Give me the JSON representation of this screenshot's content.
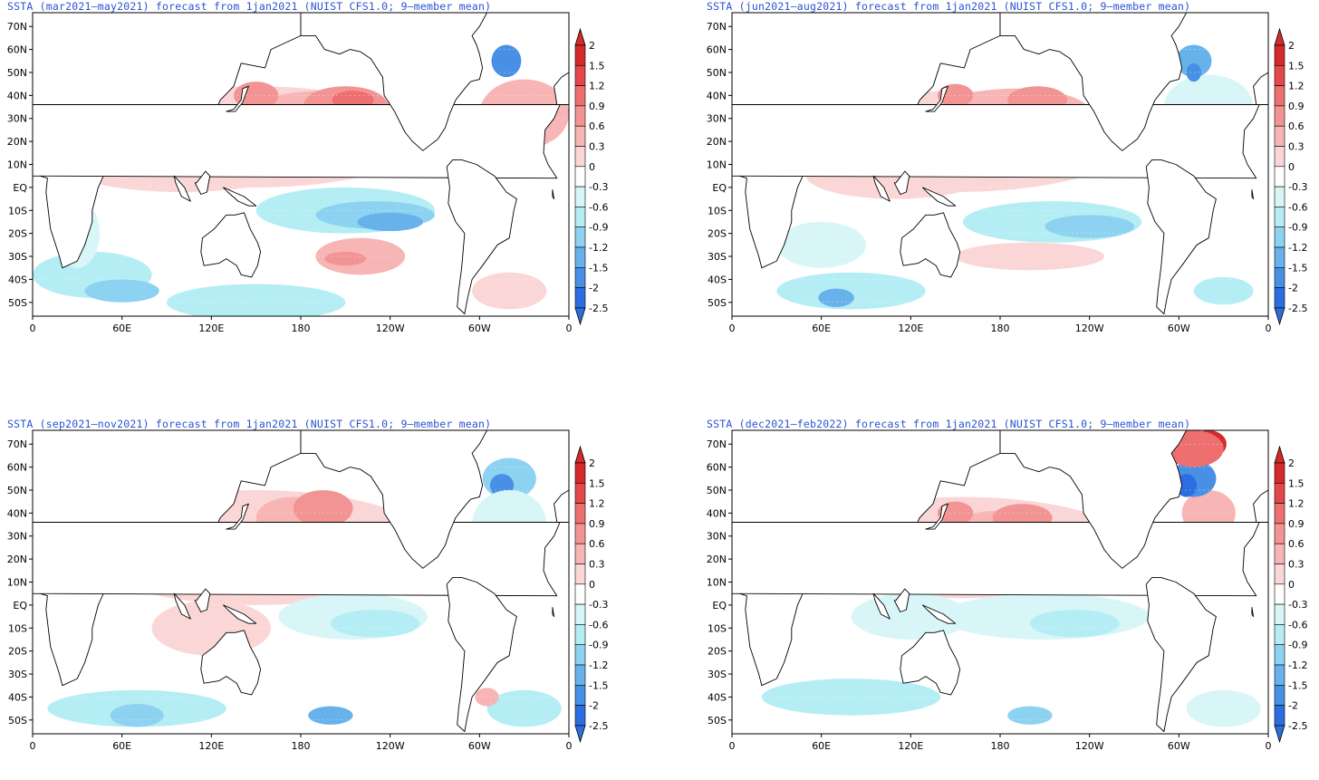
{
  "colorbar": {
    "levels": [
      "2",
      "1.5",
      "1.2",
      "0.9",
      "0.6",
      "0.3",
      "0",
      "-0.3",
      "-0.6",
      "-0.9",
      "-1.2",
      "-1.5",
      "-2",
      "-2.5"
    ],
    "colors": [
      "#d42a2a",
      "#e44848",
      "#ee6f6f",
      "#f39494",
      "#f7b5b5",
      "#fbd6d6",
      "#ffffff",
      "#d8f6f8",
      "#b4eef4",
      "#8dd2f0",
      "#68b2ec",
      "#4890e6",
      "#2c6ee0"
    ]
  },
  "axes": {
    "lat_labels": [
      "70N",
      "60N",
      "50N",
      "40N",
      "30N",
      "20N",
      "10N",
      "EQ",
      "10S",
      "20S",
      "30S",
      "40S",
      "50S"
    ],
    "lon_labels": [
      "0",
      "60E",
      "120E",
      "180",
      "120W",
      "60W",
      "0"
    ]
  },
  "colors": {
    "land": "#ffffff",
    "coast": "#000000",
    "title": "#2a52d4"
  },
  "panels": [
    {
      "title": "SSTA (mar2021–may2021) forecast from 1jan2021 (NUIST CFS1.0; 9–member mean)"
    },
    {
      "title": "SSTA (jun2021–aug2021) forecast from 1jan2021 (NUIST CFS1.0; 9–member mean)"
    },
    {
      "title": "SSTA (sep2021–nov2021) forecast from 1jan2021 (NUIST CFS1.0; 9–member mean)"
    },
    {
      "title": "SSTA (dec2021–feb2022) forecast from 1jan2021 (NUIST CFS1.0; 9–member mean)"
    }
  ]
}
